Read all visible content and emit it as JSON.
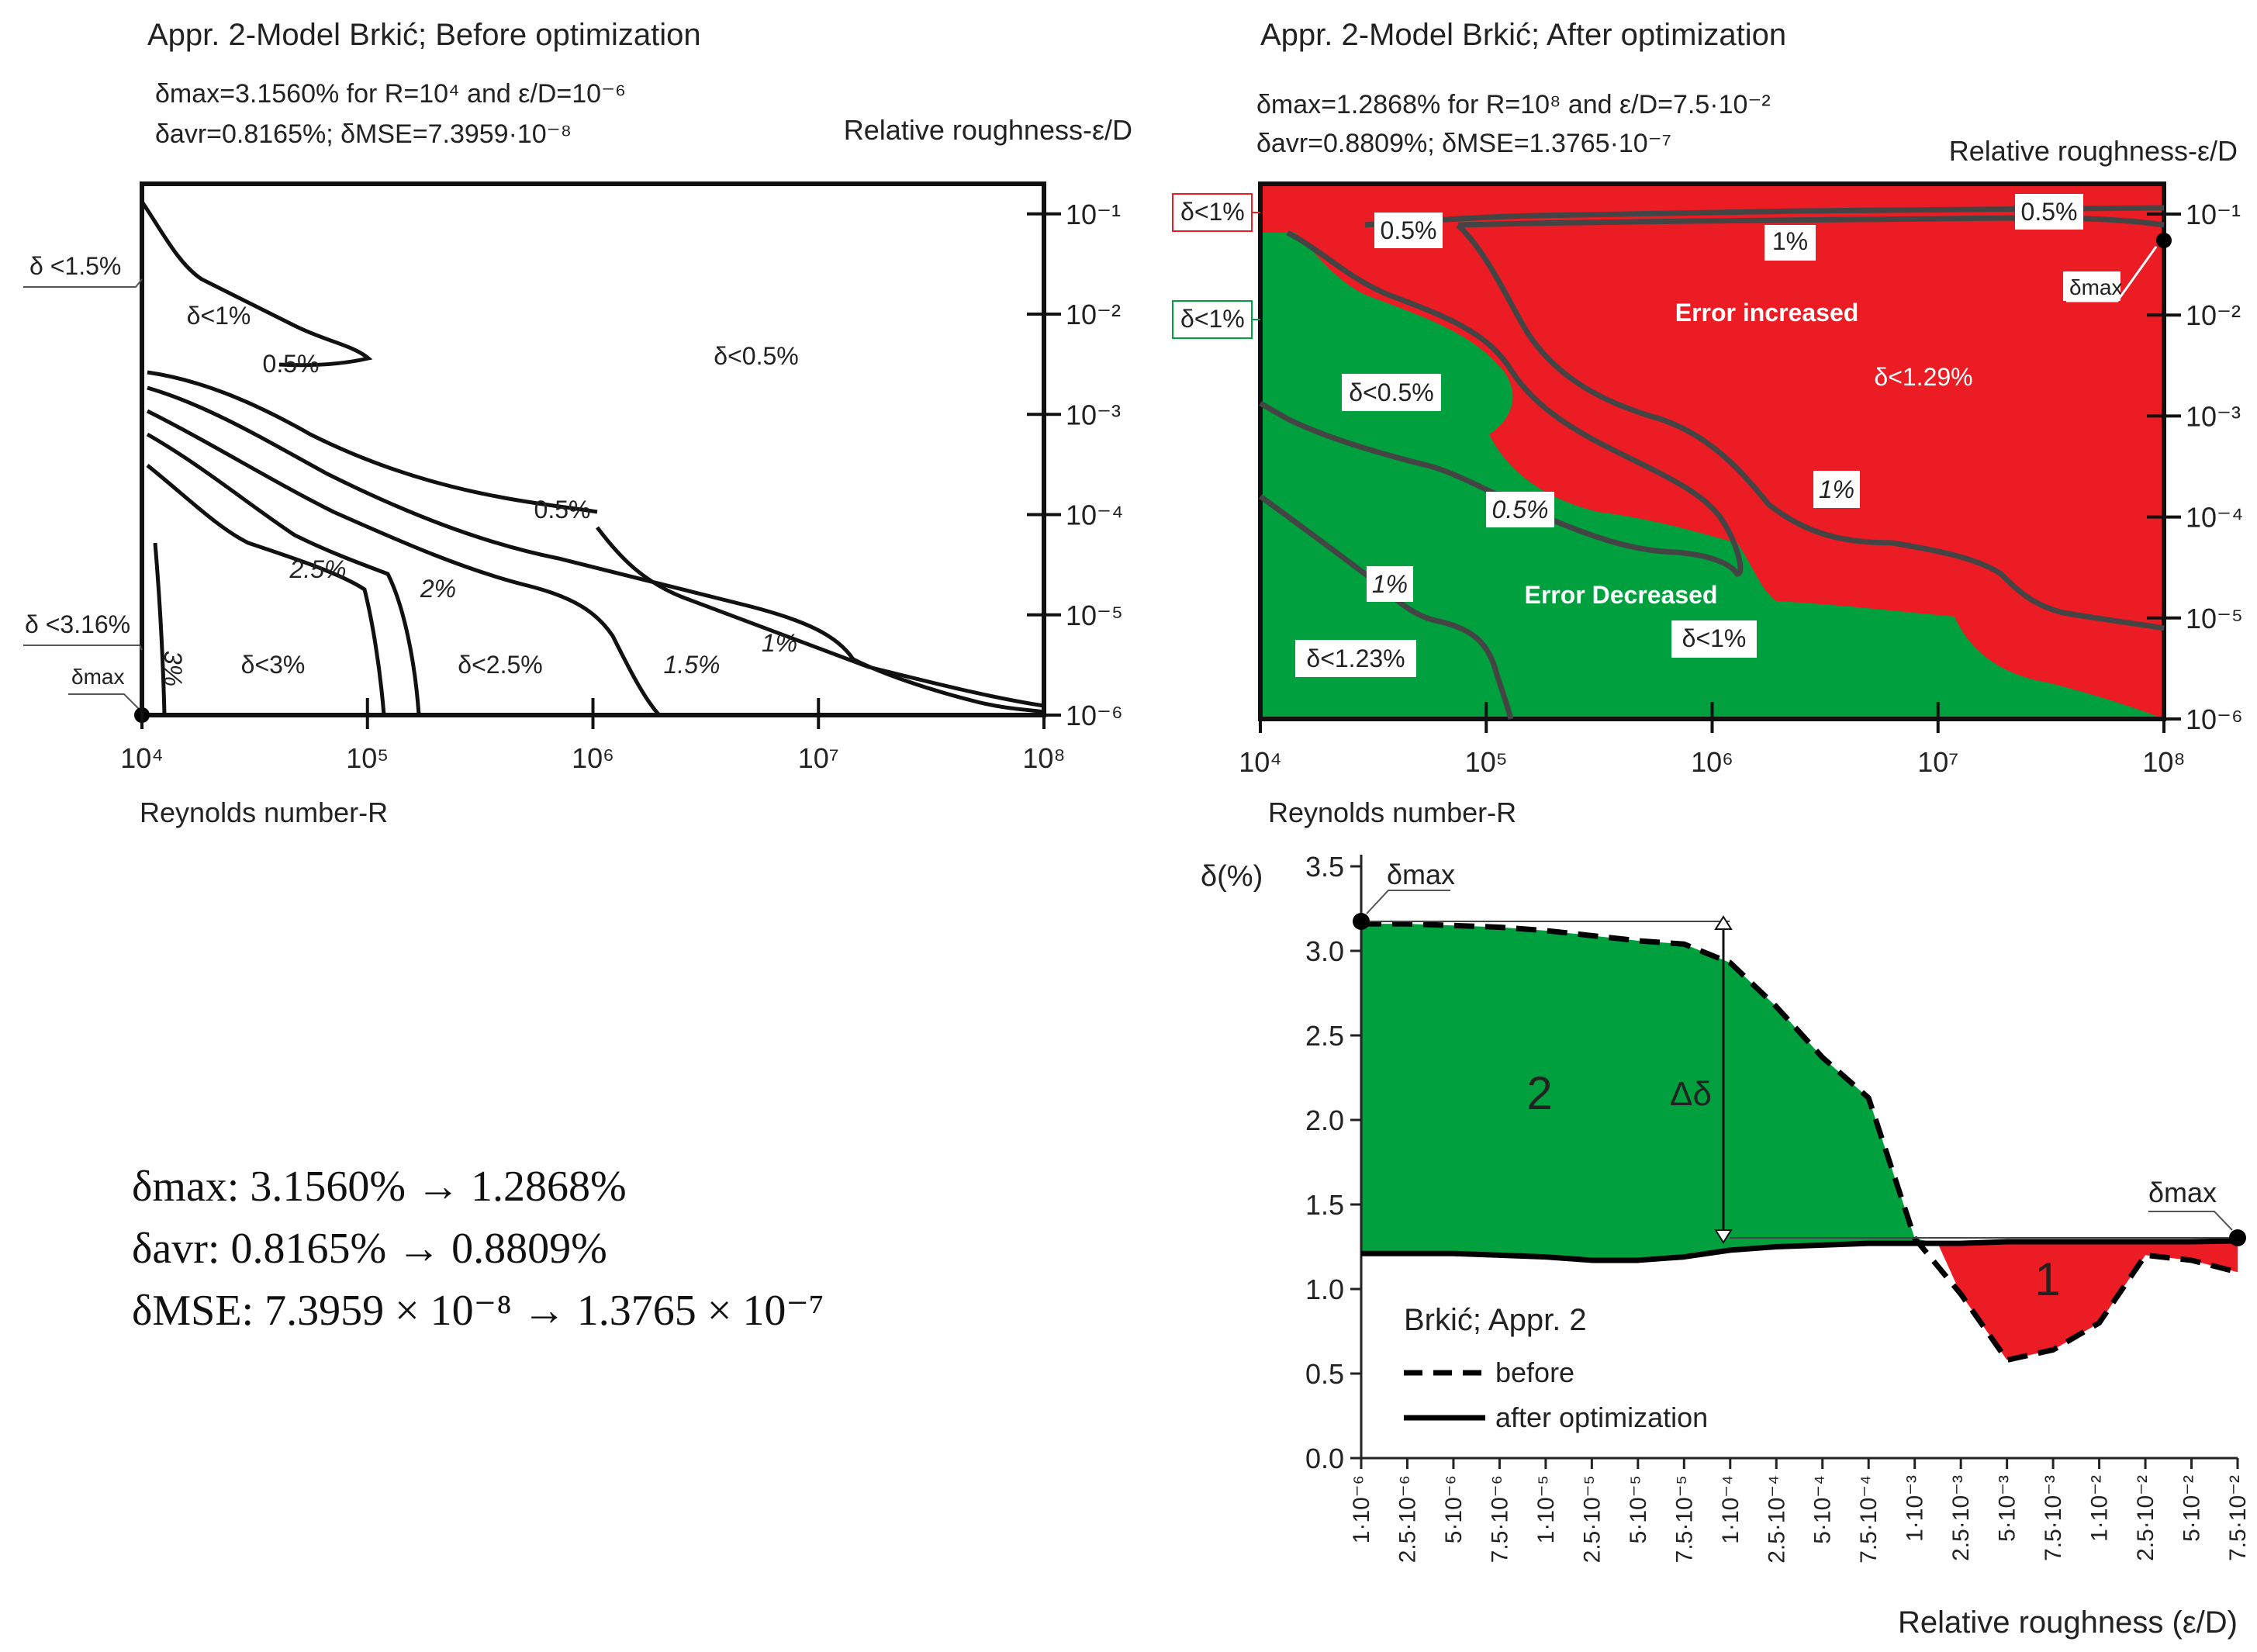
{
  "chart_data": [
    {
      "id": "before",
      "type": "contour",
      "title": "Appr. 2-Model Brkić; Before optimization",
      "stats": {
        "line1": "δmax=3.1560% for R=10⁴ and ε/D=10⁻⁶",
        "line2": "δavr=0.8165%; δMSE=7.3959·10⁻⁸"
      },
      "xlabel": "Reynolds number-R",
      "ylabel": "Relative roughness-ε/D",
      "x_ticks": [
        "10⁴",
        "10⁵",
        "10⁶",
        "10⁷",
        "10⁸"
      ],
      "y_ticks": [
        "10⁻¹",
        "10⁻²",
        "10⁻³",
        "10⁻⁴",
        "10⁻⁵",
        "10⁻⁶"
      ],
      "xlim_log10": [
        4,
        8
      ],
      "ylim_log10": [
        -6,
        -0.7
      ],
      "contour_labels": [
        "δ<1%",
        "0.5%",
        "δ<0.5%",
        "0.5%",
        "2.5%",
        "2%",
        "1%",
        "1.5%",
        "3%",
        "δ<3%",
        "δ<2.5%"
      ],
      "edge_labels": [
        "δ <1.5%",
        "δ <3.16%"
      ],
      "marker_label": "δmax",
      "max_point": {
        "R": 10000,
        "eps_D": 1e-06,
        "delta": 3.156
      }
    },
    {
      "id": "after",
      "type": "contour",
      "title": "Appr. 2-Model Brkić; After optimization",
      "stats": {
        "line1": "δmax=1.2868% for R=10⁸ and ε/D=7.5·10⁻²",
        "line2": "δavr=0.8809%; δMSE=1.3765·10⁻⁷"
      },
      "xlabel": "Reynolds number-R",
      "ylabel": "Relative roughness-ε/D",
      "x_ticks": [
        "10⁴",
        "10⁵",
        "10⁶",
        "10⁷",
        "10⁸"
      ],
      "y_ticks": [
        "10⁻¹",
        "10⁻²",
        "10⁻³",
        "10⁻⁴",
        "10⁻⁵",
        "10⁻⁶"
      ],
      "xlim_log10": [
        4,
        8
      ],
      "ylim_log10": [
        -6,
        -0.7
      ],
      "regions": {
        "increased": "Error increased",
        "decreased": "Error Decreased"
      },
      "contour_labels": [
        "0.5%",
        "0.5%",
        "1%",
        "δ<1.29%",
        "δ<0.5%",
        "1%",
        "0.5%",
        "1%",
        "δ<1.23%",
        "δ<1%"
      ],
      "edge_labels": [
        "δ<1%",
        "δ<1%"
      ],
      "marker_label": "δmax",
      "max_point": {
        "R": 100000000,
        "eps_D": 0.075,
        "delta": 1.2868
      }
    },
    {
      "id": "profile",
      "type": "area",
      "ylabel": "δ(%)",
      "xlabel": "Relative roughness (ε/D)",
      "ylim": [
        0,
        3.5
      ],
      "y_ticks": [
        0.0,
        0.5,
        1.0,
        1.5,
        2.0,
        2.5,
        3.0,
        3.5
      ],
      "categories": [
        "1·10⁻⁶",
        "2.5·10⁻⁶",
        "5·10⁻⁶",
        "7.5·10⁻⁶",
        "1·10⁻⁵",
        "2.5·10⁻⁵",
        "5·10⁻⁵",
        "7.5·10⁻⁵",
        "1·10⁻⁴",
        "2.5·10⁻⁴",
        "5·10⁻⁴",
        "7.5·10⁻⁴",
        "1·10⁻³",
        "2.5·10⁻³",
        "5·10⁻³",
        "7.5·10⁻³",
        "1·10⁻²",
        "2.5·10⁻²",
        "5·10⁻²",
        "7.5·10⁻²"
      ],
      "series": [
        {
          "name": "before",
          "style": "dashed",
          "values": [
            3.16,
            3.16,
            3.15,
            3.14,
            3.12,
            3.09,
            3.06,
            3.04,
            2.93,
            2.67,
            2.37,
            2.13,
            1.3,
            0.97,
            0.58,
            0.64,
            0.8,
            1.2,
            1.17,
            1.1
          ]
        },
        {
          "name": "after optimization",
          "style": "solid",
          "values": [
            1.21,
            1.21,
            1.21,
            1.2,
            1.19,
            1.17,
            1.17,
            1.19,
            1.23,
            1.25,
            1.26,
            1.27,
            1.27,
            1.27,
            1.28,
            1.28,
            1.28,
            1.28,
            1.28,
            1.285
          ]
        }
      ],
      "crossover_index": 12.5,
      "region_labels": [
        "2",
        "1"
      ],
      "delta_label": "Δδ",
      "legend_title": "Brkić; Appr. 2",
      "marker_labels": [
        "δmax",
        "δmax"
      ],
      "colors": {
        "decreased": "#00A03E",
        "increased": "#EC1C24"
      }
    }
  ],
  "summary": {
    "max": "δmax: 3.1560% → 1.2868%",
    "avr": "δavr: 0.8165% → 0.8809%",
    "mse": "δMSE: 7.3959 × 10⁻⁸ → 1.3765 × 10⁻⁷"
  }
}
